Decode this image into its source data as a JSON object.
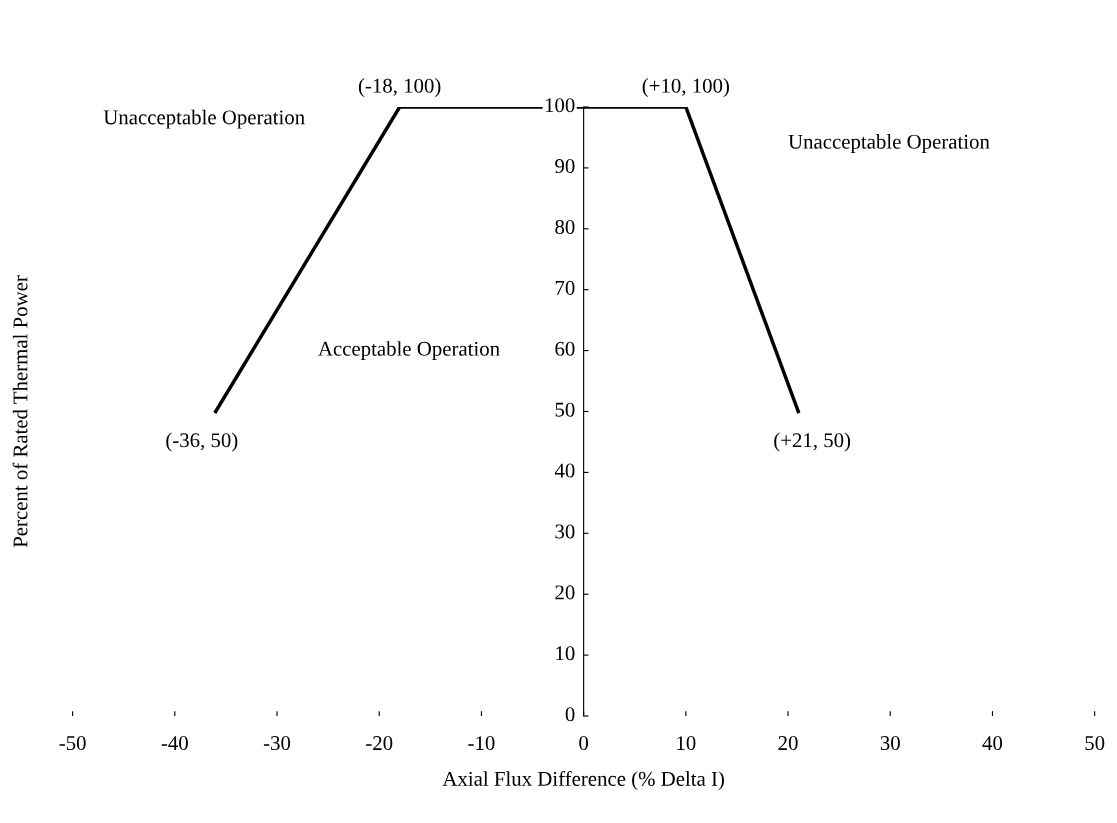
{
  "chart_data": {
    "type": "line",
    "xlabel": "Axial Flux Difference (% Delta I)",
    "ylabel": "Percent of Rated Thermal Power",
    "x": [
      -36,
      -18,
      10,
      21
    ],
    "values": [
      50,
      100,
      100,
      50
    ],
    "value_labels": [
      "(-36, 50)",
      "(-18, 100)",
      "(+10, 100)",
      "(+21, 50)"
    ],
    "color": "#000000",
    "marker": "none",
    "line_style": "solid",
    "xlim": [
      -50,
      50
    ],
    "xticks": [
      -50,
      -40,
      -30,
      -20,
      -10,
      0,
      10,
      20,
      30,
      40,
      50
    ],
    "ylim": [
      0,
      100
    ],
    "yticks": [
      0,
      10,
      20,
      30,
      40,
      50,
      60,
      70,
      80,
      90,
      100
    ],
    "grid": false,
    "annotations": [
      "Unacceptable Operation",
      "Unacceptable Operation",
      "Acceptable Operation"
    ]
  }
}
